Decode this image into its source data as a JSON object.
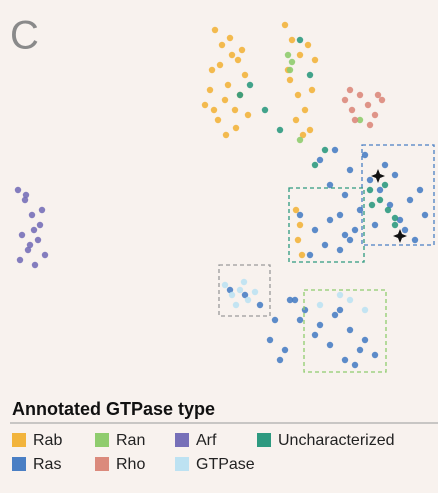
{
  "chart_data": {
    "type": "scatter",
    "panel_label": "C",
    "legend_title": "Annotated GTPase type",
    "xlim": [
      0,
      438
    ],
    "ylim": [
      385,
      0
    ],
    "series": [
      {
        "name": "Rab",
        "color": "#f2b43c",
        "x": [
          215,
          222,
          230,
          238,
          245,
          210,
          225,
          235,
          218,
          228,
          240,
          205,
          212,
          232,
          248,
          220,
          236,
          226,
          214,
          242,
          285,
          292,
          300,
          308,
          315,
          290,
          298,
          305,
          312,
          296,
          303,
          288,
          310,
          296,
          300,
          298,
          302
        ],
        "values": [
          30,
          45,
          38,
          60,
          75,
          90,
          100,
          110,
          120,
          85,
          95,
          105,
          70,
          55,
          115,
          65,
          128,
          135,
          110,
          50,
          25,
          40,
          55,
          45,
          60,
          80,
          95,
          110,
          90,
          120,
          135,
          70,
          130,
          210,
          225,
          240,
          255
        ]
      },
      {
        "name": "Ras",
        "color": "#4a7fc4",
        "x": [
          320,
          335,
          350,
          365,
          380,
          395,
          410,
          425,
          330,
          345,
          360,
          375,
          390,
          405,
          420,
          340,
          355,
          370,
          385,
          400,
          415,
          300,
          315,
          325,
          340,
          350,
          310,
          330,
          345,
          230,
          245,
          260,
          275,
          290,
          305,
          320,
          335,
          350,
          365,
          375,
          270,
          285,
          300,
          315,
          330,
          345,
          360,
          280,
          295,
          340,
          355
        ],
        "values": [
          160,
          150,
          170,
          155,
          190,
          175,
          200,
          215,
          185,
          195,
          210,
          225,
          205,
          230,
          190,
          215,
          230,
          180,
          165,
          220,
          240,
          215,
          230,
          245,
          250,
          240,
          255,
          220,
          235,
          290,
          295,
          305,
          320,
          300,
          310,
          325,
          315,
          330,
          340,
          355,
          340,
          350,
          320,
          335,
          345,
          360,
          350,
          360,
          300,
          310,
          365
        ]
      },
      {
        "name": "Ran",
        "color": "#8fcc6e",
        "x": [
          288,
          292,
          290,
          300,
          360
        ],
        "values": [
          55,
          62,
          70,
          140,
          120
        ]
      },
      {
        "name": "Rho",
        "color": "#db8a7c",
        "x": [
          345,
          352,
          360,
          368,
          375,
          382,
          355,
          370,
          350,
          378
        ],
        "values": [
          100,
          110,
          95,
          105,
          115,
          100,
          120,
          125,
          90,
          95
        ]
      },
      {
        "name": "Arf",
        "color": "#7770b8",
        "x": [
          18,
          25,
          32,
          40,
          22,
          30,
          38,
          45,
          20,
          28,
          35,
          42,
          26,
          34
        ],
        "values": [
          190,
          200,
          215,
          225,
          235,
          245,
          240,
          255,
          260,
          250,
          265,
          210,
          195,
          230
        ]
      },
      {
        "name": "GTPase",
        "color": "#bde2f2",
        "x": [
          225,
          232,
          240,
          248,
          255,
          236,
          244,
          350,
          365,
          320,
          340
        ],
        "values": [
          285,
          295,
          290,
          300,
          292,
          305,
          282,
          300,
          310,
          305,
          295
        ]
      },
      {
        "name": "Uncharacterized",
        "color": "#2e9a80",
        "x": [
          370,
          380,
          388,
          395,
          372,
          385,
          240,
          250,
          300,
          310,
          325,
          265,
          280,
          315,
          395
        ],
        "values": [
          190,
          200,
          210,
          218,
          205,
          185,
          95,
          85,
          40,
          75,
          150,
          110,
          130,
          165,
          225
        ]
      }
    ]
  }
}
